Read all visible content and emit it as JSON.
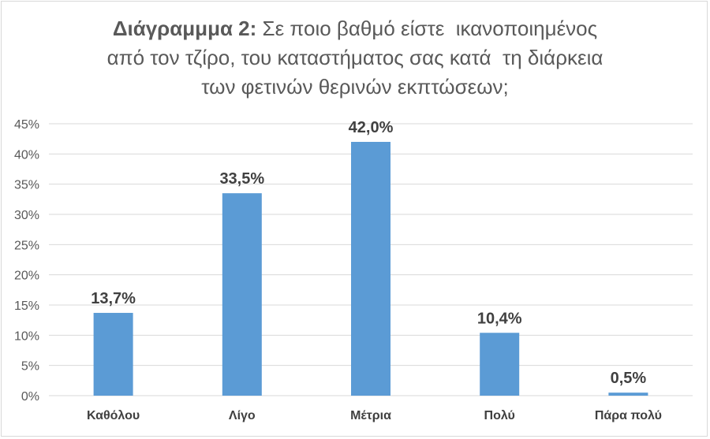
{
  "chart_data": {
    "type": "bar",
    "title_lead": "Διάγραμμμα 2:",
    "title_lines": [
      " Σε ποιο βαθμό είστε  ικανοποιημένος",
      "από τον τζίρο, του καταστήματος σας κατά  τη διάρκεια",
      "των φετινών θερινών εκπτώσεων;"
    ],
    "categories": [
      "Καθόλου",
      "Λίγο",
      "Μέτρια",
      "Πολύ",
      "Πάρα πολύ"
    ],
    "values": [
      13.7,
      33.5,
      42.0,
      10.4,
      0.5
    ],
    "data_labels": [
      "13,7%",
      "33,5%",
      "42,0%",
      "10,4%",
      "0,5%"
    ],
    "yticks": [
      "0%",
      "5%",
      "10%",
      "15%",
      "20%",
      "25%",
      "30%",
      "35%",
      "40%",
      "45%"
    ],
    "ylim": [
      0,
      45
    ],
    "grid": true,
    "legend": "none",
    "bar_color": "#5b9bd5",
    "grid_color": "#d9d9d9"
  }
}
